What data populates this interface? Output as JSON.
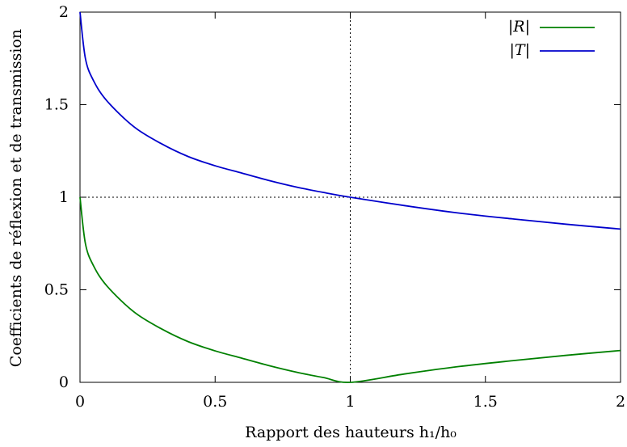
{
  "chart_data": {
    "type": "line",
    "xlabel": "Rapport des hauteurs h₁/h₀",
    "ylabel": "Coefficients de réflexion et de transmission",
    "xlim": [
      0,
      2
    ],
    "ylim": [
      0,
      2
    ],
    "x_ticks": [
      "0",
      "0.5",
      "1",
      "1.5",
      "2"
    ],
    "y_ticks": [
      "0",
      "0.5",
      "1",
      "1.5",
      "2"
    ],
    "grid": false,
    "reference_lines": [
      {
        "axis": "x",
        "value": 1,
        "style": "dotted"
      },
      {
        "axis": "y",
        "value": 1,
        "style": "dotted"
      }
    ],
    "legend": {
      "position": "top-right"
    },
    "series": [
      {
        "name": "|R|",
        "color": "#008000",
        "x": [
          0,
          0.02,
          0.05,
          0.1,
          0.2,
          0.3,
          0.4,
          0.5,
          0.6,
          0.7,
          0.8,
          0.9,
          1.0,
          1.2,
          1.4,
          1.6,
          1.8,
          2.0
        ],
        "y": [
          1.0,
          0.75,
          0.63,
          0.52,
          0.38,
          0.29,
          0.22,
          0.17,
          0.13,
          0.09,
          0.055,
          0.026,
          0.0,
          0.045,
          0.085,
          0.117,
          0.146,
          0.172
        ]
      },
      {
        "name": "|T|",
        "color": "#0000cc",
        "x": [
          0,
          0.02,
          0.05,
          0.1,
          0.2,
          0.3,
          0.4,
          0.5,
          0.6,
          0.7,
          0.8,
          0.9,
          1.0,
          1.2,
          1.4,
          1.6,
          1.8,
          2.0
        ],
        "y": [
          2.0,
          1.75,
          1.63,
          1.52,
          1.38,
          1.29,
          1.22,
          1.17,
          1.13,
          1.09,
          1.055,
          1.026,
          1.0,
          0.955,
          0.915,
          0.883,
          0.854,
          0.828
        ]
      }
    ]
  }
}
